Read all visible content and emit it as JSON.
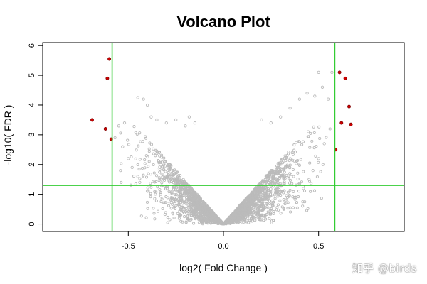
{
  "chart_data": {
    "type": "scatter",
    "title": "Volcano Plot",
    "xlabel": "log2( Fold Change )",
    "ylabel": "-log10( FDR )",
    "xlim": [
      -0.95,
      0.95
    ],
    "ylim": [
      -0.25,
      6.1
    ],
    "xticks": [
      -0.5,
      0.0,
      0.5
    ],
    "xtick_labels": [
      "-0.5",
      "0.0",
      "0.5"
    ],
    "yticks": [
      0,
      1,
      2,
      3,
      4,
      5,
      6
    ],
    "ytick_labels": [
      "0",
      "1",
      "2",
      "3",
      "4",
      "5",
      "6"
    ],
    "grid": false,
    "threshold_lines": {
      "x": [
        -0.585,
        0.585
      ],
      "y": [
        1.301
      ],
      "color": "#33cc33"
    },
    "series": [
      {
        "values_description": "non-significant genes",
        "color": "#bbbbbb",
        "points": [
          [
            -0.55,
            3.3
          ],
          [
            -0.52,
            3.4
          ],
          [
            -0.45,
            4.25
          ],
          [
            -0.42,
            4.2
          ],
          [
            -0.4,
            4.0
          ],
          [
            -0.38,
            3.6
          ],
          [
            -0.35,
            3.5
          ],
          [
            -0.3,
            3.4
          ],
          [
            -0.25,
            3.5
          ],
          [
            -0.2,
            3.3
          ],
          [
            -0.18,
            3.6
          ],
          [
            -0.15,
            3.4
          ],
          [
            -0.57,
            2.9
          ],
          [
            -0.53,
            2.6
          ],
          [
            -0.5,
            2.2
          ],
          [
            -0.48,
            1.9
          ],
          [
            -0.45,
            1.6
          ],
          [
            -0.44,
            1.4
          ],
          [
            -0.4,
            1.1
          ],
          [
            0.2,
            3.5
          ],
          [
            0.25,
            3.4
          ],
          [
            0.3,
            3.6
          ],
          [
            0.35,
            3.9
          ],
          [
            0.4,
            4.2
          ],
          [
            0.44,
            4.4
          ],
          [
            0.48,
            4.3
          ],
          [
            0.5,
            5.1
          ],
          [
            0.52,
            4.6
          ],
          [
            0.55,
            4.2
          ],
          [
            0.57,
            5.1
          ],
          [
            0.56,
            3.2
          ],
          [
            0.53,
            2.7
          ],
          [
            0.5,
            2.2
          ],
          [
            0.47,
            1.8
          ],
          [
            0.45,
            1.5
          ],
          [
            0.42,
            1.2
          ],
          [
            0.38,
            0.9
          ]
        ]
      },
      {
        "values_description": "significant genes",
        "color": "#cc0000",
        "points": [
          [
            -0.6,
            5.55
          ],
          [
            -0.61,
            4.9
          ],
          [
            -0.69,
            3.5
          ],
          [
            -0.62,
            3.2
          ],
          [
            -0.59,
            2.85
          ],
          [
            0.61,
            5.1
          ],
          [
            0.64,
            4.9
          ],
          [
            0.66,
            3.95
          ],
          [
            0.62,
            3.4
          ],
          [
            0.67,
            3.35
          ],
          [
            0.59,
            2.5
          ]
        ]
      }
    ]
  },
  "watermark": {
    "text": "知乎 @birds"
  }
}
